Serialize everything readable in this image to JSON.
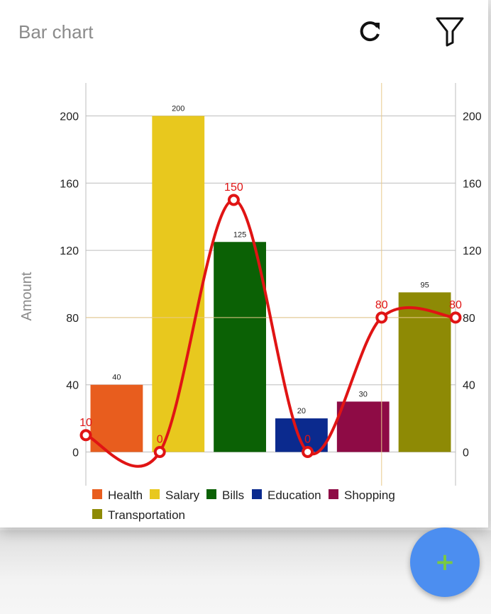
{
  "header": {
    "title": "Bar chart",
    "refresh_icon": "refresh-icon",
    "filter_icon": "filter-icon"
  },
  "fab": {
    "label": "+",
    "icon": "plus-icon"
  },
  "chart_data": {
    "type": "bar",
    "categories": [
      "Health",
      "Salary",
      "Bills",
      "Education",
      "Shopping",
      "Transportation"
    ],
    "series": [
      {
        "name": "",
        "kind": "bar",
        "values": [
          40,
          200,
          125,
          20,
          30,
          95
        ],
        "colors": [
          "#e85d1e",
          "#e8c81e",
          "#0b6105",
          "#0b2a8e",
          "#8e0b45",
          "#8e8a05"
        ]
      },
      {
        "name": "",
        "kind": "line",
        "smooth": true,
        "color": "#e01414",
        "values": [
          10,
          0,
          150,
          0,
          80,
          80
        ]
      }
    ],
    "ylabel": "Amount",
    "ylim": [
      0,
      200
    ],
    "yticks": [
      0,
      40,
      80,
      120,
      160,
      200
    ],
    "legend_position": "bottom",
    "grid": true
  }
}
